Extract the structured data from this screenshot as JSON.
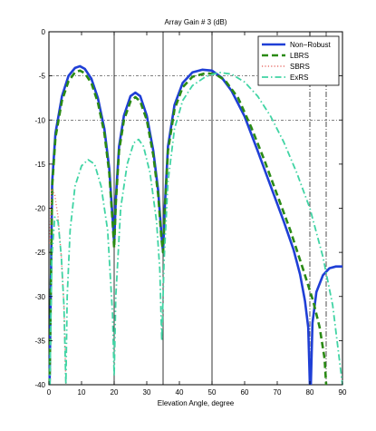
{
  "chart_data": {
    "type": "line",
    "title": "Array Gain # 3 (dB)",
    "xlabel": "Elevation Angle, degree",
    "ylabel": "",
    "xlim": [
      0,
      90
    ],
    "ylim": [
      -40,
      0
    ],
    "x_ticks": [
      0,
      10,
      20,
      30,
      40,
      50,
      60,
      70,
      80,
      90
    ],
    "y_ticks": [
      0,
      -5,
      -10,
      -15,
      -20,
      -25,
      -30,
      -35,
      -40
    ],
    "grid": false,
    "legend_position": "top-right",
    "reference_lines": {
      "solid_vertical_x": [
        20,
        35,
        50
      ],
      "dashdot_vertical_x": [
        80,
        85
      ],
      "dashdot_horizontal_y": [
        -5,
        -10
      ]
    },
    "series": [
      {
        "name": "Non−Robust",
        "color": "#1f3fd6",
        "style": "solid",
        "points": [
          [
            0.2,
            -40
          ],
          [
            1,
            -17
          ],
          [
            2,
            -11.5
          ],
          [
            4,
            -7.3
          ],
          [
            6,
            -5
          ],
          [
            8,
            -4.1
          ],
          [
            9.5,
            -3.9
          ],
          [
            11,
            -4.2
          ],
          [
            13,
            -5.3
          ],
          [
            15,
            -7.5
          ],
          [
            17,
            -11
          ],
          [
            18.5,
            -15.5
          ],
          [
            19.5,
            -21
          ],
          [
            20,
            -24
          ],
          [
            20.5,
            -19
          ],
          [
            21.5,
            -13
          ],
          [
            23,
            -9.5
          ],
          [
            25,
            -7.3
          ],
          [
            26.5,
            -6.9
          ],
          [
            28,
            -7.3
          ],
          [
            30,
            -9.5
          ],
          [
            32,
            -13.5
          ],
          [
            33.5,
            -18
          ],
          [
            34.5,
            -23
          ],
          [
            35,
            -25
          ],
          [
            35.5,
            -20
          ],
          [
            36.5,
            -13
          ],
          [
            38.5,
            -8.3
          ],
          [
            41,
            -5.8
          ],
          [
            44,
            -4.6
          ],
          [
            47,
            -4.3
          ],
          [
            50,
            -4.4
          ],
          [
            53,
            -5.2
          ],
          [
            56,
            -6.7
          ],
          [
            60,
            -9.6
          ],
          [
            64,
            -13.5
          ],
          [
            68,
            -17.5
          ],
          [
            72,
            -21.5
          ],
          [
            75,
            -24.7
          ],
          [
            77,
            -27.5
          ],
          [
            78.5,
            -30.5
          ],
          [
            79.5,
            -33.5
          ],
          [
            80,
            -40
          ]
        ]
      },
      {
        "name": "Non−Robust",
        "color": "#1f3fd6",
        "style": "solid",
        "points": [
          [
            80.3,
            -40
          ],
          [
            80.8,
            -33
          ],
          [
            82,
            -29.5
          ],
          [
            84,
            -27.6
          ],
          [
            86,
            -26.8
          ],
          [
            88,
            -26.6
          ],
          [
            90,
            -26.6
          ]
        ]
      },
      {
        "name": "LBRS",
        "color": "#2a8a14",
        "style": "dashed",
        "points": [
          [
            0.2,
            -40
          ],
          [
            1,
            -17.5
          ],
          [
            2,
            -12
          ],
          [
            4,
            -7.8
          ],
          [
            6,
            -5.6
          ],
          [
            8,
            -4.6
          ],
          [
            9.5,
            -4.4
          ],
          [
            11,
            -4.7
          ],
          [
            13,
            -5.8
          ],
          [
            15,
            -8
          ],
          [
            17,
            -11.5
          ],
          [
            18.5,
            -16
          ],
          [
            19.5,
            -21.5
          ],
          [
            20,
            -24.5
          ],
          [
            20.5,
            -19.5
          ],
          [
            21.5,
            -13.5
          ],
          [
            23,
            -10
          ],
          [
            25,
            -7.9
          ],
          [
            26.5,
            -7.4
          ],
          [
            28,
            -7.9
          ],
          [
            30,
            -10
          ],
          [
            32,
            -14
          ],
          [
            33.5,
            -18.5
          ],
          [
            34.5,
            -23.5
          ],
          [
            35,
            -25
          ],
          [
            35.5,
            -20.5
          ],
          [
            36.5,
            -13.5
          ],
          [
            38.5,
            -8.8
          ],
          [
            41,
            -6.3
          ],
          [
            44,
            -5.1
          ],
          [
            48,
            -4.7
          ],
          [
            51,
            -4.8
          ],
          [
            54,
            -5.5
          ],
          [
            58,
            -7.5
          ],
          [
            62,
            -10.8
          ],
          [
            66,
            -14.5
          ],
          [
            70,
            -18.5
          ],
          [
            74,
            -22.5
          ],
          [
            78,
            -27
          ],
          [
            81,
            -30.5
          ],
          [
            83,
            -33.5
          ],
          [
            84.5,
            -37
          ],
          [
            85,
            -40
          ]
        ]
      },
      {
        "name": "SBRS",
        "color": "#e8736e",
        "style": "dotted",
        "points": [
          [
            0.2,
            -24
          ],
          [
            0.8,
            -17.8
          ],
          [
            1.8,
            -18.5
          ],
          [
            2.8,
            -21
          ],
          [
            3.8,
            -25.5
          ],
          [
            4.6,
            -31
          ],
          [
            5,
            -37
          ],
          [
            5.2,
            -40
          ]
        ]
      },
      {
        "name": "ExRS",
        "color": "#40d4a4",
        "style": "dashdot",
        "points": [
          [
            0.3,
            -40
          ],
          [
            0.9,
            -25.5
          ],
          [
            1.8,
            -21
          ],
          [
            2.8,
            -21.5
          ],
          [
            3.8,
            -25.5
          ],
          [
            4.6,
            -31
          ],
          [
            5.2,
            -40
          ],
          [
            5.6,
            -30
          ],
          [
            6.5,
            -22.5
          ],
          [
            8,
            -17.5
          ],
          [
            10,
            -15.2
          ],
          [
            12,
            -14.5
          ],
          [
            14,
            -15
          ],
          [
            16,
            -17.5
          ],
          [
            18,
            -22.5
          ],
          [
            19.5,
            -32
          ],
          [
            20,
            -39
          ],
          [
            20.5,
            -30
          ],
          [
            22,
            -20
          ],
          [
            24,
            -15
          ],
          [
            26,
            -12.6
          ],
          [
            27.5,
            -12.2
          ],
          [
            29,
            -13
          ],
          [
            31,
            -16
          ],
          [
            33,
            -21.5
          ],
          [
            34,
            -27
          ],
          [
            34.6,
            -35
          ],
          [
            35.3,
            -26
          ],
          [
            36.5,
            -17
          ],
          [
            38.5,
            -11
          ],
          [
            41,
            -7.8
          ],
          [
            44,
            -6.1
          ],
          [
            48,
            -5.1
          ],
          [
            52,
            -4.6
          ],
          [
            56,
            -4.8
          ],
          [
            60,
            -5.7
          ],
          [
            64,
            -7.3
          ],
          [
            68,
            -9.6
          ],
          [
            72,
            -12.5
          ],
          [
            76,
            -16
          ],
          [
            80,
            -20
          ],
          [
            84,
            -25.5
          ],
          [
            87,
            -31
          ],
          [
            89,
            -37
          ],
          [
            90,
            -40
          ]
        ]
      }
    ]
  }
}
